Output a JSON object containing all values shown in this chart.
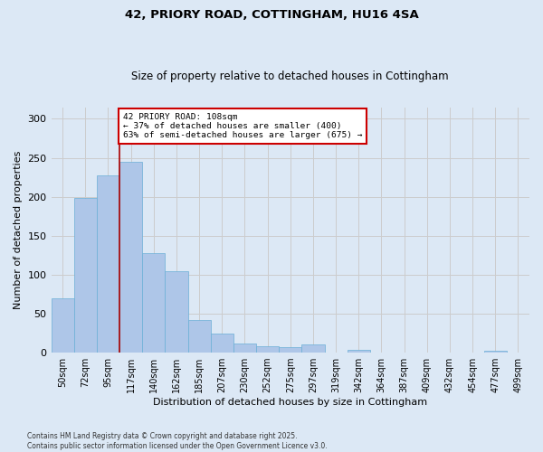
{
  "title_line1": "42, PRIORY ROAD, COTTINGHAM, HU16 4SA",
  "title_line2": "Size of property relative to detached houses in Cottingham",
  "xlabel": "Distribution of detached houses by size in Cottingham",
  "ylabel": "Number of detached properties",
  "categories": [
    "50sqm",
    "72sqm",
    "95sqm",
    "117sqm",
    "140sqm",
    "162sqm",
    "185sqm",
    "207sqm",
    "230sqm",
    "252sqm",
    "275sqm",
    "297sqm",
    "319sqm",
    "342sqm",
    "364sqm",
    "387sqm",
    "409sqm",
    "432sqm",
    "454sqm",
    "477sqm",
    "499sqm"
  ],
  "values": [
    70,
    198,
    228,
    245,
    128,
    104,
    42,
    25,
    12,
    8,
    7,
    11,
    0,
    3,
    0,
    0,
    0,
    0,
    0,
    2,
    0
  ],
  "bar_color": "#aec6e8",
  "bar_edge_color": "#6aafd6",
  "bar_edge_width": 0.5,
  "annotation_text": "42 PRIORY ROAD: 108sqm\n← 37% of detached houses are smaller (400)\n63% of semi-detached houses are larger (675) →",
  "annotation_box_color": "#ffffff",
  "annotation_box_edge": "#cc0000",
  "vline_color": "#aa0000",
  "ylim": [
    0,
    315
  ],
  "yticks": [
    0,
    50,
    100,
    150,
    200,
    250,
    300
  ],
  "grid_color": "#cccccc",
  "bg_color": "#dce8f5",
  "fig_bg_color": "#dce8f5",
  "footer_line1": "Contains HM Land Registry data © Crown copyright and database right 2025.",
  "footer_line2": "Contains public sector information licensed under the Open Government Licence v3.0."
}
